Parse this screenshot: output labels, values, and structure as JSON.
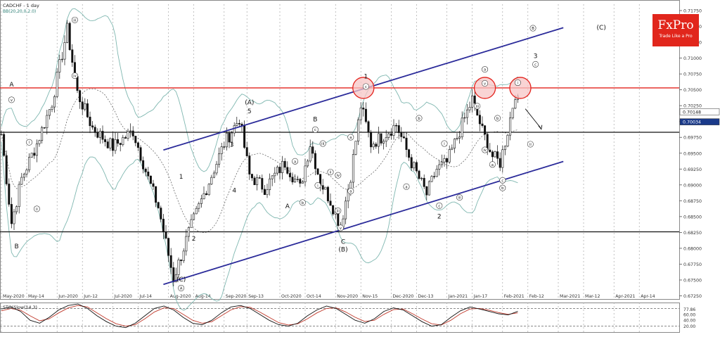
{
  "header": {
    "symbol_label": "CADCHF - 1 day",
    "bb_label": "BB(20,20,0,2.0)"
  },
  "logo": {
    "brand": "FxPro",
    "tagline": "Trade Like a Pro",
    "color": "#e1261c"
  },
  "colors": {
    "channel": "#2b2b9a",
    "resistance": "#e3221c",
    "support": "#111111",
    "bb": "#7fb7b0",
    "ma": "#555555",
    "candle": "#111111",
    "stoch_k": "#111111",
    "stoch_d": "#c0392b",
    "highlight_fill": "#f7c6c6"
  },
  "chart_data": [
    {
      "type": "candlestick",
      "title": "CADCHF - 1 day",
      "subtitle": "BB(20,20,0,2.0)",
      "ylim": [
        0.672,
        0.7185
      ],
      "y_ticks": [
        0.7175,
        0.715,
        0.7125,
        0.71,
        0.7075,
        0.705,
        0.7025,
        0.7,
        0.6975,
        0.695,
        0.6925,
        0.69,
        0.6875,
        0.685,
        0.6825,
        0.68,
        0.6775,
        0.675,
        0.6725
      ],
      "y_tick_labels": [
        "0.71750",
        "0.71500",
        "0.71250",
        "0.71000",
        "0.70750",
        "0.70500",
        "0.70250",
        "0.70000",
        "0.69750",
        "0.69500",
        "0.69250",
        "0.69000",
        "0.68750",
        "0.68500",
        "0.68250",
        "0.68000",
        "0.67750",
        "0.67500",
        "0.67250"
      ],
      "x_tick_labels": [
        "May-2020",
        "May-14",
        "Jun-2020",
        "Jun-12",
        "Jul-2020",
        "Jul-14",
        "Aug-2020",
        "Aug-14",
        "Sep-2020",
        "Sep-13",
        "Oct-2020",
        "Oct-14",
        "Nov-2020",
        "Nov-15",
        "Dec-2020",
        "Dec-13",
        "Jan-2021",
        "Jan-17",
        "Feb-2021",
        "Feb-12",
        "Mar-2021",
        "Mar-12",
        "Apr-2021",
        "Apr-14"
      ],
      "x_tick_index": [
        0,
        10,
        22,
        32,
        44,
        54,
        66,
        76,
        88,
        97,
        110,
        120,
        132,
        142,
        154,
        164,
        176,
        186,
        198,
        208,
        220,
        230,
        242,
        252
      ],
      "last_bar_index": 204,
      "price_badges": [
        {
          "label": "0.70148",
          "value": 0.70148
        },
        {
          "label": "0.70034",
          "value": 0.70034
        }
      ],
      "horizontal_levels": [
        {
          "name": "resistance",
          "value": 0.7053
        },
        {
          "name": "support",
          "value": 0.6983
        },
        {
          "name": "low-support",
          "value": 0.6826
        }
      ],
      "channel_lines": [
        {
          "name": "upper",
          "points": [
            [
              64,
              0.6955
            ],
            [
              222,
              0.7148
            ]
          ]
        },
        {
          "name": "lower",
          "points": [
            [
              64,
              0.6743
            ],
            [
              222,
              0.6937
            ]
          ]
        }
      ],
      "anchors": [
        [
          0,
          0.698
        ],
        [
          4,
          0.684
        ],
        [
          8,
          0.691
        ],
        [
          14,
          0.6965
        ],
        [
          20,
          0.703
        ],
        [
          26,
          0.7145
        ],
        [
          30,
          0.7045
        ],
        [
          36,
          0.699
        ],
        [
          44,
          0.696
        ],
        [
          52,
          0.6985
        ],
        [
          58,
          0.691
        ],
        [
          62,
          0.6865
        ],
        [
          68,
          0.6752
        ],
        [
          74,
          0.6825
        ],
        [
          82,
          0.6905
        ],
        [
          88,
          0.6965
        ],
        [
          94,
          0.7005
        ],
        [
          98,
          0.6915
        ],
        [
          104,
          0.6895
        ],
        [
          112,
          0.6935
        ],
        [
          118,
          0.6895
        ],
        [
          122,
          0.6965
        ],
        [
          126,
          0.6905
        ],
        [
          130,
          0.6875
        ],
        [
          134,
          0.6835
        ],
        [
          138,
          0.6915
        ],
        [
          142,
          0.7025
        ],
        [
          146,
          0.6965
        ],
        [
          150,
          0.6975
        ],
        [
          156,
          0.6995
        ],
        [
          162,
          0.6935
        ],
        [
          168,
          0.6885
        ],
        [
          172,
          0.6925
        ],
        [
          176,
          0.6935
        ],
        [
          180,
          0.6975
        ],
        [
          186,
          0.7035
        ],
        [
          190,
          0.6985
        ],
        [
          194,
          0.6945
        ],
        [
          197,
          0.6935
        ],
        [
          200,
          0.6985
        ],
        [
          203,
          0.7045
        ],
        [
          205,
          0.7015
        ],
        [
          207,
          0.7005
        ]
      ],
      "circles": [
        {
          "i": 143,
          "v": 0.7053
        },
        {
          "i": 191,
          "v": 0.7053
        },
        {
          "i": 205,
          "v": 0.7053
        }
      ],
      "labels": [
        {
          "i": 4,
          "v": 0.7055,
          "text": "A"
        },
        {
          "i": 4,
          "v": 0.7032,
          "text": "v",
          "c": 1
        },
        {
          "i": 6,
          "v": 0.68,
          "text": "B"
        },
        {
          "i": 29,
          "v": 0.7158,
          "text": "iii",
          "c": 1
        },
        {
          "i": 29,
          "v": 0.707,
          "text": "iv",
          "c": 1
        },
        {
          "i": 11,
          "v": 0.6965,
          "text": "i",
          "c": 1
        },
        {
          "i": 14,
          "v": 0.686,
          "text": "ii",
          "c": 1
        },
        {
          "i": 71,
          "v": 0.691,
          "text": "1"
        },
        {
          "i": 76,
          "v": 0.6812,
          "text": "2"
        },
        {
          "i": 91,
          "v": 0.696,
          "text": "3"
        },
        {
          "i": 92,
          "v": 0.6888,
          "text": "4"
        },
        {
          "i": 98,
          "v": 0.7027,
          "text": "(A)"
        },
        {
          "i": 98,
          "v": 0.7013,
          "text": "5"
        },
        {
          "i": 71,
          "v": 0.6748,
          "text": "(C)"
        },
        {
          "i": 71,
          "v": 0.6735,
          "text": "A",
          "c": 1
        },
        {
          "i": 113,
          "v": 0.6863,
          "text": "A"
        },
        {
          "i": 116,
          "v": 0.6935,
          "text": "a",
          "c": 1
        },
        {
          "i": 119,
          "v": 0.687,
          "text": "b",
          "c": 1
        },
        {
          "i": 124,
          "v": 0.7,
          "text": "B"
        },
        {
          "i": 124,
          "v": 0.6985,
          "text": "c",
          "c": 1
        },
        {
          "i": 127,
          "v": 0.6963,
          "text": "iii",
          "c": 1
        },
        {
          "i": 125,
          "v": 0.6897,
          "text": "i",
          "c": 1
        },
        {
          "i": 130,
          "v": 0.6918,
          "text": "ii",
          "c": 1
        },
        {
          "i": 133,
          "v": 0.6913,
          "text": "iv",
          "c": 1
        },
        {
          "i": 133,
          "v": 0.6857,
          "text": "iii",
          "c": 1
        },
        {
          "i": 134,
          "v": 0.683,
          "text": "v",
          "c": 1
        },
        {
          "i": 135,
          "v": 0.6807,
          "text": "C"
        },
        {
          "i": 135,
          "v": 0.6795,
          "text": "(B)"
        },
        {
          "i": 138,
          "v": 0.6888,
          "text": "a",
          "c": 1
        },
        {
          "i": 138,
          "v": 0.6973,
          "text": "a",
          "c": 1
        },
        {
          "i": 144,
          "v": 0.7068,
          "text": "1"
        },
        {
          "i": 144,
          "v": 0.7053,
          "text": "c",
          "c": 1
        },
        {
          "i": 160,
          "v": 0.6895,
          "text": "a",
          "c": 1
        },
        {
          "i": 165,
          "v": 0.7003,
          "text": "b",
          "c": 1
        },
        {
          "i": 173,
          "v": 0.6865,
          "text": "c",
          "c": 1
        },
        {
          "i": 173,
          "v": 0.6847,
          "text": "2"
        },
        {
          "i": 175,
          "v": 0.6963,
          "text": "i",
          "c": 1
        },
        {
          "i": 181,
          "v": 0.6878,
          "text": "iii",
          "c": 1
        },
        {
          "i": 188,
          "v": 0.7022,
          "text": "iii",
          "c": 1
        },
        {
          "i": 191,
          "v": 0.708,
          "text": "a",
          "c": 1
        },
        {
          "i": 191,
          "v": 0.7058,
          "text": "v",
          "c": 1
        },
        {
          "i": 191,
          "v": 0.6953,
          "text": "iv",
          "c": 1
        },
        {
          "i": 194,
          "v": 0.693,
          "text": "a",
          "c": 1
        },
        {
          "i": 196,
          "v": 0.7003,
          "text": "b",
          "c": 1
        },
        {
          "i": 198,
          "v": 0.6905,
          "text": "c",
          "c": 1
        },
        {
          "i": 198,
          "v": 0.6893,
          "text": "b",
          "c": 1
        },
        {
          "i": 204,
          "v": 0.7059,
          "text": "i",
          "c": 1
        },
        {
          "i": 211,
          "v": 0.71,
          "text": "3"
        },
        {
          "i": 211,
          "v": 0.7088,
          "text": "c",
          "c": 1
        },
        {
          "i": 209,
          "v": 0.6962,
          "text": "ii",
          "c": 1
        },
        {
          "i": 210,
          "v": 0.7145,
          "text": "B",
          "c": 1
        },
        {
          "i": 237,
          "v": 0.7145,
          "text": "(C)"
        }
      ]
    },
    {
      "type": "line",
      "title": "STO(Slow(14,3)",
      "ylim": [
        0,
        100
      ],
      "y_ticks": [
        77.86,
        60.0,
        40.0,
        20.0
      ],
      "y_tick_labels": [
        "77.86",
        "60.00",
        "40.00",
        "20.00"
      ],
      "levels": [
        80,
        20
      ],
      "series": [
        {
          "values": [
            78,
            85,
            70,
            40,
            30,
            50,
            75,
            90,
            95,
            80,
            55,
            35,
            20,
            15,
            30,
            55,
            80,
            88,
            75,
            50,
            30,
            25,
            40,
            65,
            85,
            90,
            80,
            60,
            40,
            25,
            20,
            30,
            55,
            75,
            88,
            80,
            60,
            40,
            30,
            45,
            70,
            82,
            75,
            55,
            35,
            20,
            25,
            50,
            72,
            85,
            78,
            70,
            62,
            58,
            70
          ]
        },
        {
          "values": [
            72,
            80,
            74,
            55,
            38,
            45,
            65,
            82,
            90,
            85,
            65,
            45,
            28,
            20,
            25,
            45,
            68,
            82,
            80,
            60,
            40,
            30,
            35,
            55,
            75,
            86,
            84,
            68,
            50,
            32,
            24,
            28,
            45,
            65,
            80,
            82,
            68,
            50,
            36,
            40,
            60,
            76,
            78,
            62,
            44,
            28,
            24,
            40,
            62,
            78,
            80,
            74,
            66,
            60,
            65
          ]
        }
      ]
    }
  ]
}
